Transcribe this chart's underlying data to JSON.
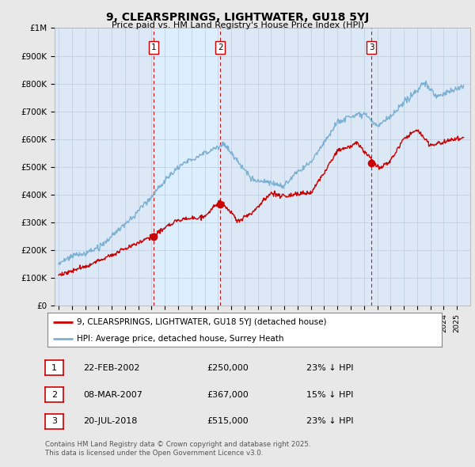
{
  "title": "9, CLEARSPRINGS, LIGHTWATER, GU18 5YJ",
  "subtitle": "Price paid vs. HM Land Registry's House Price Index (HPI)",
  "background_color": "#e8e8e8",
  "plot_bg_color": "#dce8f5",
  "sale_dates_float": [
    2002.146,
    2007.181,
    2018.549
  ],
  "sale_prices": [
    250000,
    367000,
    515000
  ],
  "sale_labels": [
    "1",
    "2",
    "3"
  ],
  "legend_red": "9, CLEARSPRINGS, LIGHTWATER, GU18 5YJ (detached house)",
  "legend_blue": "HPI: Average price, detached house, Surrey Heath",
  "table_rows": [
    [
      "1",
      "22-FEB-2002",
      "£250,000",
      "23% ↓ HPI"
    ],
    [
      "2",
      "08-MAR-2007",
      "£367,000",
      "15% ↓ HPI"
    ],
    [
      "3",
      "20-JUL-2018",
      "£515,000",
      "23% ↓ HPI"
    ]
  ],
  "footnote1": "Contains HM Land Registry data © Crown copyright and database right 2025.",
  "footnote2": "This data is licensed under the Open Government Licence v3.0.",
  "ylim": [
    0,
    1000000
  ],
  "yticks": [
    0,
    100000,
    200000,
    300000,
    400000,
    500000,
    600000,
    700000,
    800000,
    900000,
    1000000
  ],
  "ytick_labels": [
    "£0",
    "£100K",
    "£200K",
    "£300K",
    "£400K",
    "£500K",
    "£600K",
    "£700K",
    "£800K",
    "£900K",
    "£1M"
  ],
  "red_color": "#cc0000",
  "blue_color": "#7ab0d4",
  "vline_color": "#cc0000",
  "grid_color": "#bbccdd",
  "shade_color": "#d0e4f4"
}
